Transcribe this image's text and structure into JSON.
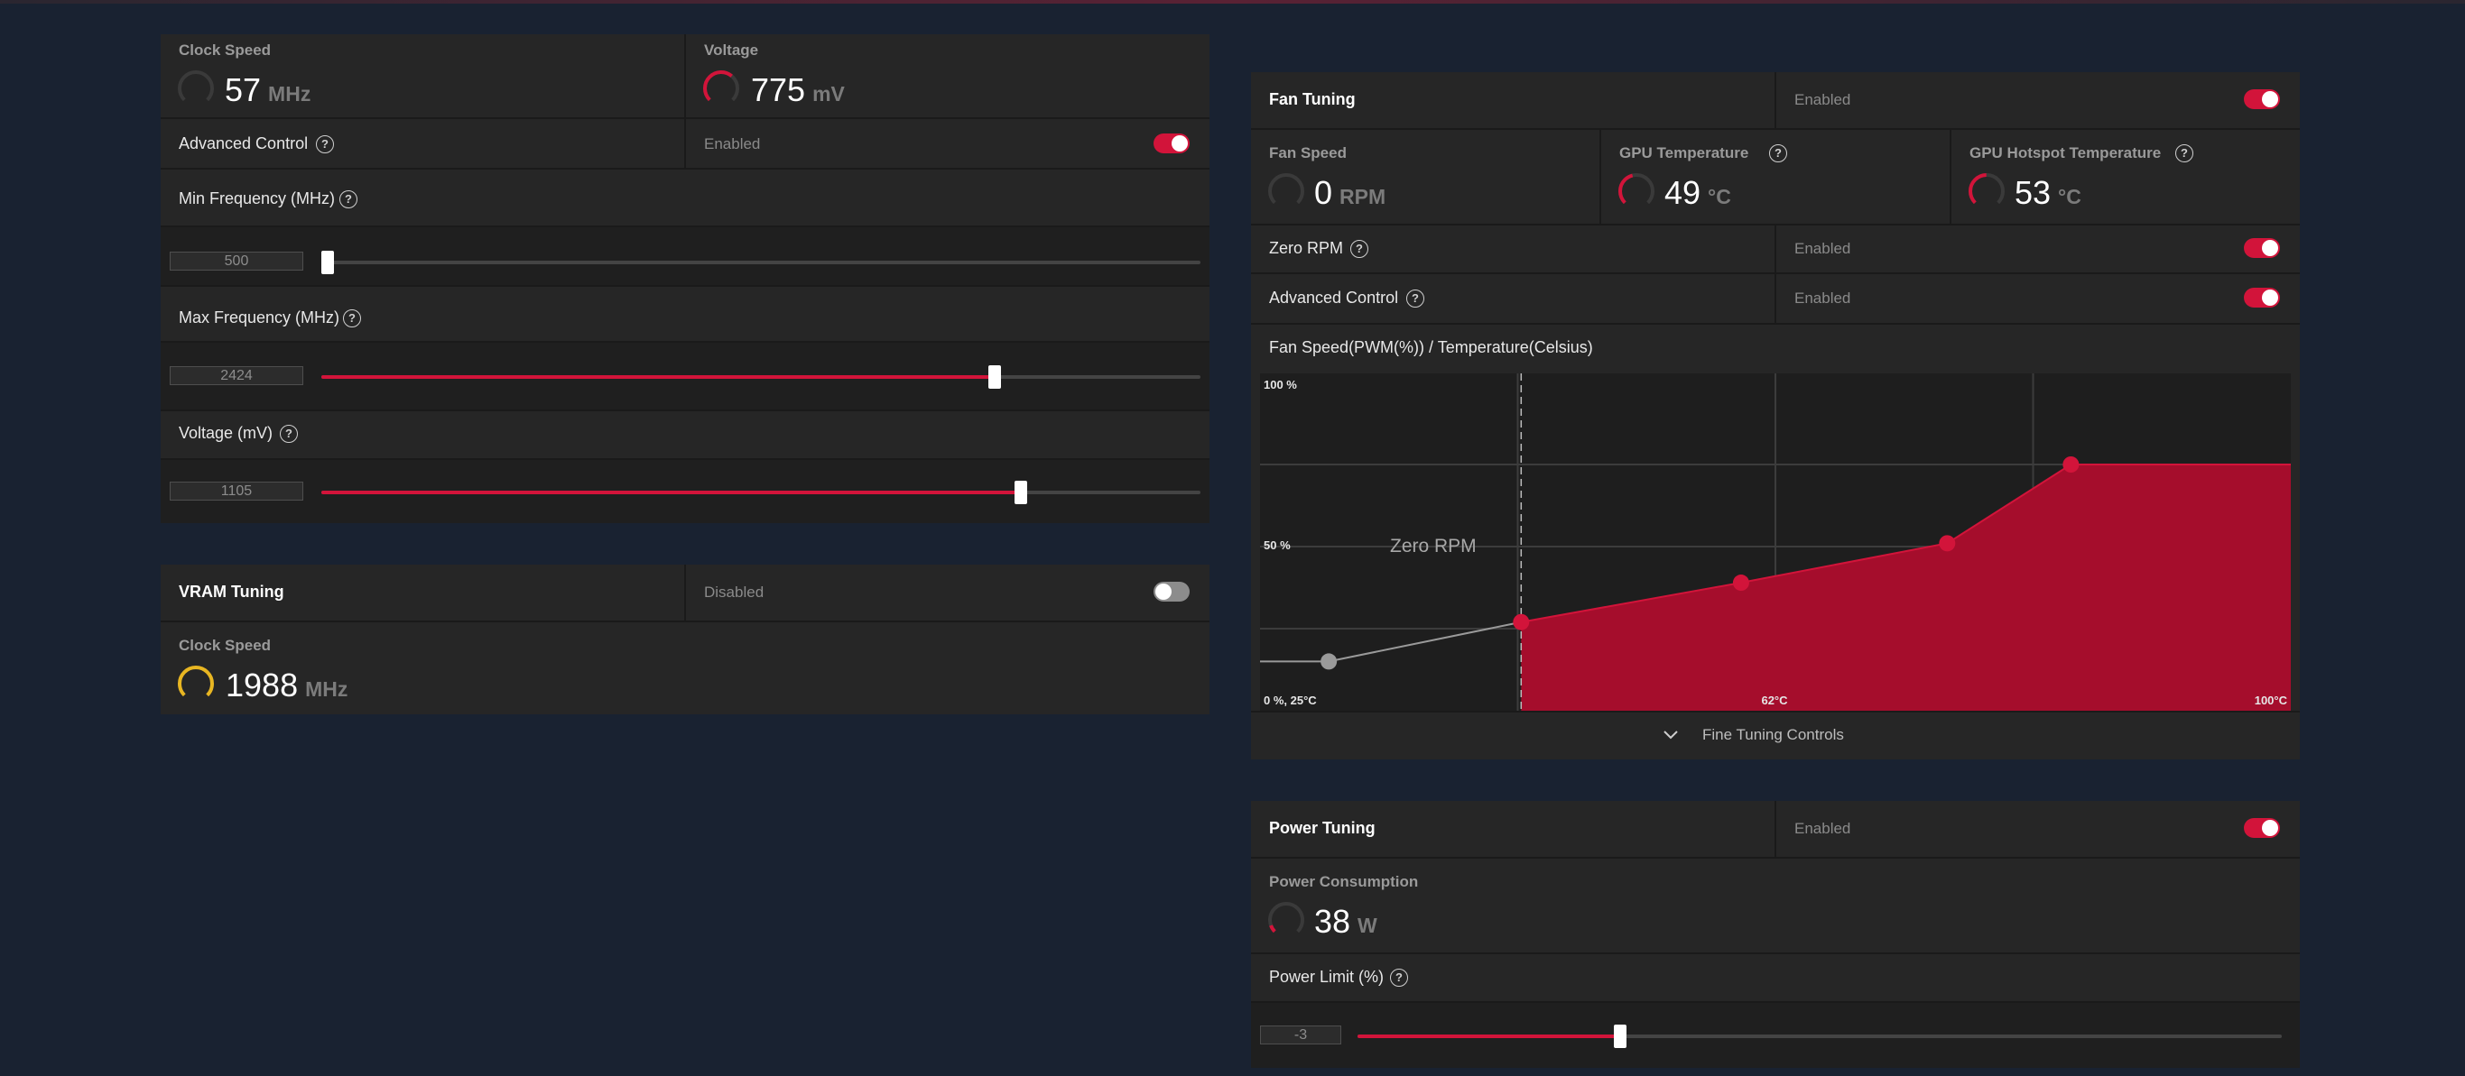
{
  "gpu": {
    "clock_label": "Clock Speed",
    "clock_value": "57",
    "clock_unit": "MHz",
    "voltage_label": "Voltage",
    "voltage_value": "775",
    "voltage_unit": "mV",
    "advanced_label": "Advanced Control",
    "advanced_status": "Enabled",
    "min_freq_label": "Min Frequency (MHz)",
    "min_freq_value": "500",
    "min_freq_fraction": 0.0,
    "max_freq_label": "Max Frequency (MHz)",
    "max_freq_value": "2424",
    "max_freq_fraction": 0.766,
    "volt_ctrl_label": "Voltage (mV)",
    "volt_ctrl_value": "1105",
    "volt_ctrl_fraction": 0.796
  },
  "vram": {
    "title": "VRAM Tuning",
    "status": "Disabled",
    "clock_label": "Clock Speed",
    "clock_value": "1988",
    "clock_unit": "MHz"
  },
  "fan": {
    "title": "Fan Tuning",
    "status": "Enabled",
    "speed_label": "Fan Speed",
    "speed_value": "0",
    "speed_unit": "RPM",
    "gpu_temp_label": "GPU Temperature",
    "gpu_temp_value": "49",
    "gpu_temp_unit": "°C",
    "hotspot_label": "GPU Hotspot Temperature",
    "hotspot_value": "53",
    "hotspot_unit": "°C",
    "zero_rpm_label": "Zero RPM",
    "zero_rpm_status": "Enabled",
    "advanced_label": "Advanced Control",
    "advanced_status": "Enabled",
    "curve_title": "Fan Speed(PWM(%)) / Temperature(Celsius)",
    "fine_tuning_label": "Fine Tuning Controls"
  },
  "power": {
    "title": "Power Tuning",
    "status": "Enabled",
    "consumption_label": "Power Consumption",
    "consumption_value": "38",
    "consumption_unit": "W",
    "limit_label": "Power Limit (%)",
    "limit_value": "-3",
    "limit_fraction": 0.284
  },
  "icons": {
    "help": "question-circle-icon",
    "collapse": "chevron-down-icon",
    "gauge": "gauge-arc-icon"
  },
  "colors": {
    "accent": "#d2143a",
    "vram_gauge": "#e8b622",
    "panel": "#262626",
    "background": "#192231"
  },
  "chart_data": {
    "type": "area",
    "title": "Fan Speed(PWM(%)) / Temperature(Celsius)",
    "xlabel": "",
    "ylabel": "",
    "ytick_labels": [
      "100 %",
      "50 %",
      "0 %, 25°C"
    ],
    "xtick_labels": [
      "62°C",
      "100°C"
    ],
    "zone_label": "Zero RPM",
    "xlim": [
      25,
      100
    ],
    "ylim": [
      0,
      100
    ],
    "grid": true,
    "zero_rpm_x": 44,
    "series": [
      {
        "values": [
          {
            "x": 30,
            "y": 15
          },
          {
            "x": 44,
            "y": 27
          }
        ]
      },
      {
        "values": [
          {
            "x": 44,
            "y": 27
          },
          {
            "x": 60,
            "y": 39
          },
          {
            "x": 75,
            "y": 51
          },
          {
            "x": 84,
            "y": 75
          },
          {
            "x": 100,
            "y": 75
          }
        ]
      }
    ]
  }
}
